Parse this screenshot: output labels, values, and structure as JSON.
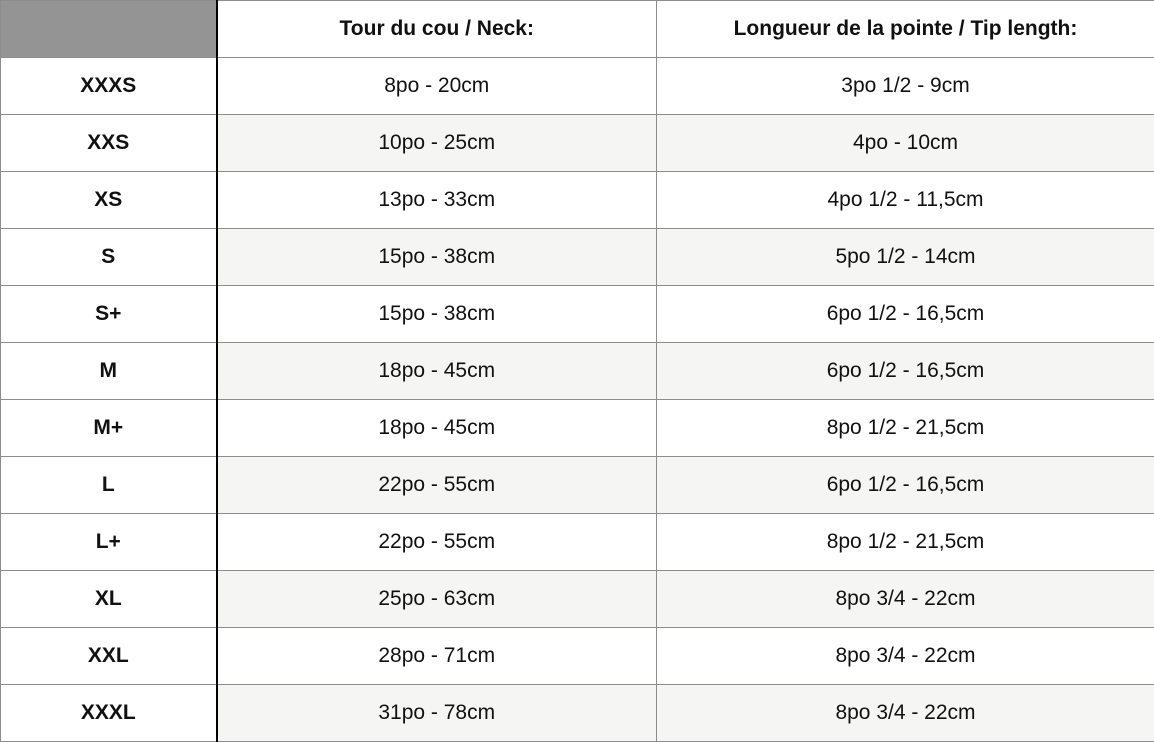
{
  "headers": [
    "",
    "Tour du cou / Neck:",
    "Longueur de la pointe / Tip length:"
  ],
  "rows": [
    {
      "size": "XXXS",
      "neck": "8po - 20cm",
      "tip": "3po 1/2 - 9cm"
    },
    {
      "size": "XXS",
      "neck": "10po - 25cm",
      "tip": "4po - 10cm"
    },
    {
      "size": "XS",
      "neck": "13po - 33cm",
      "tip": "4po 1/2 - 11,5cm"
    },
    {
      "size": "S",
      "neck": "15po - 38cm",
      "tip": "5po 1/2 - 14cm"
    },
    {
      "size": "S+",
      "neck": "15po - 38cm",
      "tip": "6po 1/2 - 16,5cm"
    },
    {
      "size": "M",
      "neck": "18po - 45cm",
      "tip": "6po 1/2 - 16,5cm"
    },
    {
      "size": "M+",
      "neck": "18po - 45cm",
      "tip": "8po 1/2 - 21,5cm"
    },
    {
      "size": "L",
      "neck": "22po - 55cm",
      "tip": "6po 1/2 - 16,5cm"
    },
    {
      "size": "L+",
      "neck": "22po - 55cm",
      "tip": "8po 1/2 - 21,5cm"
    },
    {
      "size": "XL",
      "neck": "25po - 63cm",
      "tip": "8po 3/4 - 22cm"
    },
    {
      "size": "XXL",
      "neck": "28po - 71cm",
      "tip": "8po 3/4 - 22cm"
    },
    {
      "size": "XXXL",
      "neck": "31po - 78cm",
      "tip": "8po 3/4 - 22cm"
    }
  ]
}
